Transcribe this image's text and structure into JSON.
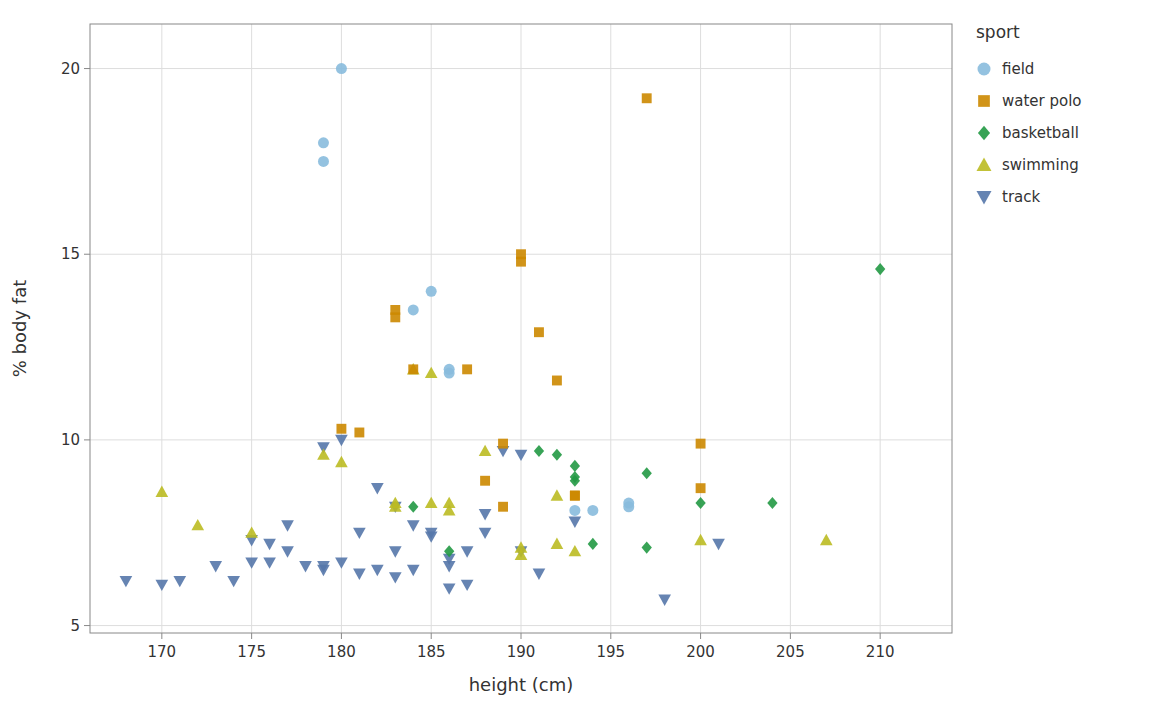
{
  "chart_data": {
    "type": "scatter",
    "xlabel": "height (cm)",
    "ylabel": "% body fat",
    "xlim": [
      166,
      214
    ],
    "ylim": [
      4.8,
      21.2
    ],
    "xticks": [
      170,
      175,
      180,
      185,
      190,
      195,
      200,
      205,
      210
    ],
    "yticks": [
      5,
      10,
      15,
      20
    ],
    "grid": true,
    "legend": "right",
    "legend_title": "sport",
    "series": [
      {
        "name": "field",
        "color": "#88bbdd",
        "marker": "circle",
        "x": [
          179,
          179,
          180,
          184,
          185,
          186,
          186,
          193,
          194,
          196,
          196
        ],
        "values": [
          17.5,
          18.0,
          20.0,
          13.5,
          14.0,
          11.8,
          11.9,
          8.1,
          8.1,
          8.2,
          8.3
        ]
      },
      {
        "name": "water polo",
        "color": "#cc8800",
        "marker": "square",
        "x": [
          180,
          181,
          183,
          183,
          184,
          187,
          188,
          189,
          189,
          190,
          190,
          191,
          192,
          193,
          193,
          197,
          200,
          200
        ],
        "values": [
          10.3,
          10.2,
          13.5,
          13.3,
          11.9,
          11.9,
          8.9,
          9.9,
          8.2,
          15.0,
          14.8,
          12.9,
          11.6,
          8.5,
          8.5,
          19.2,
          9.9,
          8.7
        ]
      },
      {
        "name": "basketball",
        "color": "#229944",
        "marker": "diamond",
        "x": [
          184,
          186,
          191,
          192,
          193,
          193,
          193,
          194,
          197,
          197,
          200,
          204,
          210
        ],
        "values": [
          8.2,
          7.0,
          9.7,
          9.6,
          9.3,
          9.0,
          8.9,
          7.2,
          7.1,
          9.1,
          8.3,
          8.3,
          14.6
        ]
      },
      {
        "name": "swimming",
        "color": "#bbbb22",
        "marker": "triangle-up",
        "x": [
          170,
          172,
          175,
          179,
          180,
          183,
          183,
          184,
          185,
          185,
          186,
          186,
          188,
          190,
          190,
          192,
          192,
          193,
          200,
          207
        ],
        "values": [
          8.6,
          7.7,
          7.5,
          9.6,
          9.4,
          8.2,
          8.3,
          11.9,
          11.8,
          8.3,
          8.3,
          8.1,
          9.7,
          7.1,
          6.9,
          7.2,
          8.5,
          7.0,
          7.3,
          7.3
        ]
      },
      {
        "name": "track",
        "color": "#5577aa",
        "marker": "triangle-down",
        "x": [
          168,
          170,
          171,
          173,
          174,
          175,
          175,
          176,
          176,
          177,
          177,
          178,
          179,
          179,
          179,
          180,
          180,
          181,
          181,
          182,
          182,
          183,
          183,
          183,
          184,
          184,
          185,
          185,
          186,
          186,
          186,
          187,
          187,
          188,
          188,
          189,
          190,
          190,
          191,
          193,
          198,
          201
        ],
        "values": [
          6.2,
          6.1,
          6.2,
          6.6,
          6.2,
          6.7,
          7.3,
          7.2,
          6.7,
          7.7,
          7.0,
          6.6,
          9.8,
          6.6,
          6.5,
          10.0,
          6.7,
          7.5,
          6.4,
          8.7,
          6.5,
          8.2,
          7.0,
          6.3,
          7.7,
          6.5,
          7.5,
          7.4,
          6.8,
          6.6,
          6.0,
          6.1,
          7.0,
          8.0,
          7.5,
          9.7,
          9.6,
          7.0,
          6.4,
          7.8,
          5.7,
          7.2
        ]
      }
    ]
  }
}
